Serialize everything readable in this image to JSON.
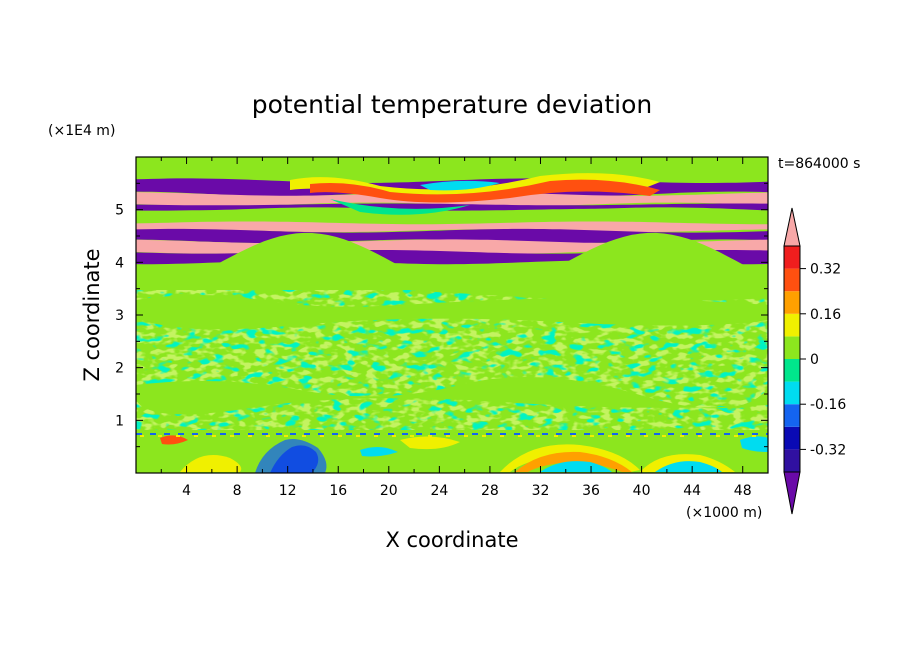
{
  "chart_data": {
    "type": "heatmap",
    "title": "potential temperature deviation",
    "xlabel": "X coordinate",
    "ylabel": "Z coordinate",
    "x_unit": "(×1000 m)",
    "y_unit": "(×1E4 m)",
    "time_label": "t=864000 s",
    "xlim": [
      0,
      50
    ],
    "ylim": [
      0,
      6
    ],
    "x_ticks": [
      "4",
      "8",
      "12",
      "16",
      "20",
      "24",
      "28",
      "32",
      "36",
      "40",
      "44",
      "48"
    ],
    "y_ticks": [
      "1",
      "2",
      "3",
      "4",
      "5"
    ],
    "colorbar": {
      "labels": [
        "0.32",
        "0.16",
        "0",
        "-0.16",
        "-0.32"
      ],
      "label_values": [
        0.32,
        0.16,
        0,
        -0.16,
        -0.32
      ],
      "levels": [
        -0.4,
        -0.32,
        -0.24,
        -0.16,
        -0.08,
        0,
        0.08,
        0.16,
        0.24,
        0.32,
        0.4
      ],
      "colors": [
        "#6a0aa8",
        "#3010a0",
        "#0a0ab4",
        "#1464f0",
        "#00dcf0",
        "#00e68c",
        "#8ce61e",
        "#f0f000",
        "#ffa000",
        "#ff5010",
        "#f01e1e",
        "#f8a8a8"
      ],
      "extend": "both"
    },
    "bands": [
      {
        "z": [
          5.55,
          5.8
        ],
        "value": 0.02
      },
      {
        "z": [
          5.3,
          5.55
        ],
        "value": -0.42
      },
      {
        "z": [
          5.1,
          5.3
        ],
        "value": 0.42
      },
      {
        "z": [
          5.0,
          5.1
        ],
        "value": -0.42
      },
      {
        "z": [
          4.75,
          5.0
        ],
        "value": 0.02
      },
      {
        "z": [
          4.6,
          4.75
        ],
        "value": 0.42
      },
      {
        "z": [
          4.4,
          4.6
        ],
        "value": -0.42
      },
      {
        "z": [
          4.2,
          4.4
        ],
        "value": 0.42
      },
      {
        "z": [
          4.0,
          4.2
        ],
        "value": -0.42
      },
      {
        "z": [
          0.8,
          4.0
        ],
        "value": 0.0
      },
      {
        "z": [
          0.0,
          0.8
        ],
        "value": 0.05
      }
    ]
  }
}
